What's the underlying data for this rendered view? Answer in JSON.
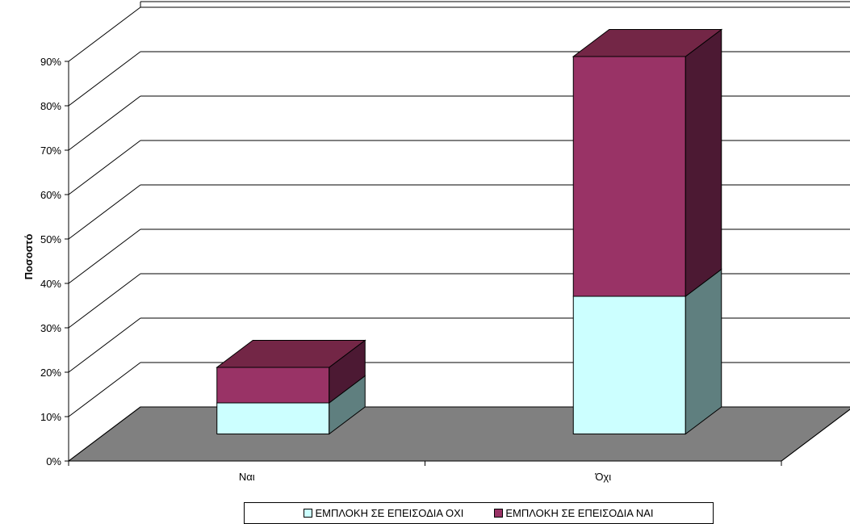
{
  "chart_data": {
    "type": "bar",
    "stacked": true,
    "three_d": true,
    "title": "",
    "xlabel": "",
    "ylabel": "Ποσοστό",
    "ylim": [
      0,
      90
    ],
    "yticks": [
      "0%",
      "10%",
      "20%",
      "30%",
      "40%",
      "50%",
      "60%",
      "70%",
      "80%",
      "90%"
    ],
    "categories": [
      "Ναι",
      "Όχι"
    ],
    "series": [
      {
        "name": "ΕΜΠΛΟΚΗ ΣΕ ΕΠΕΙΣΟΔΙΑ ΟΧΙ",
        "values": [
          7,
          31
        ],
        "color": "#ccffff",
        "side_color": "#5f7f7f"
      },
      {
        "name": "ΕΜΠΛΟΚΗ ΣΕ ΕΠΕΙΣΟΔΙΑ ΝΑΙ",
        "values": [
          8,
          54
        ],
        "color": "#993366",
        "side_color": "#4c1933"
      }
    ],
    "grid": true,
    "floor_color": "#808080",
    "legend_position": "bottom"
  }
}
